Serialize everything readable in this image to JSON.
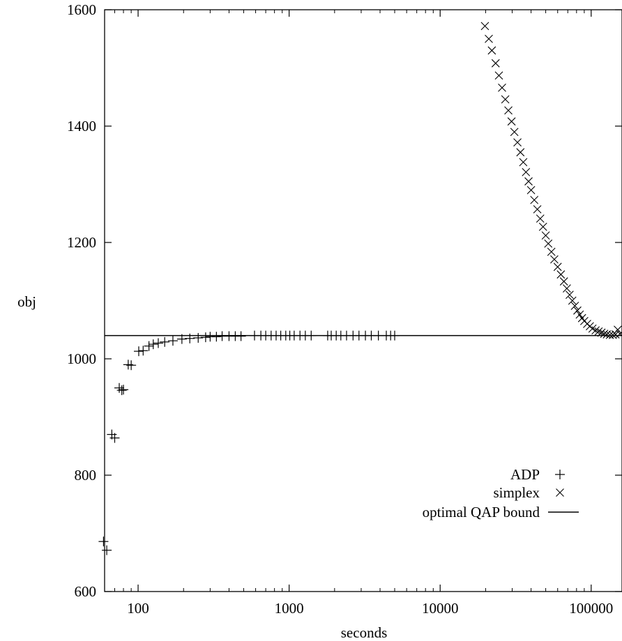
{
  "chart_data": {
    "type": "scatter",
    "title": "",
    "xlabel": "seconds",
    "ylabel": "obj",
    "x_scale": "log",
    "xlim": [
      60,
      160000
    ],
    "ylim": [
      600,
      1600
    ],
    "x_ticks": [
      100,
      1000,
      10000,
      100000
    ],
    "x_tick_labels": [
      "100",
      "1000",
      "10000",
      "100000"
    ],
    "y_ticks": [
      600,
      800,
      1000,
      1200,
      1400,
      1600
    ],
    "y_tick_labels": [
      "600",
      "800",
      "1000",
      "1200",
      "1400",
      "1600"
    ],
    "grid": false,
    "legend_position": "bottom-right",
    "series": [
      {
        "name": "ADP",
        "marker": "plus",
        "color": "#000000",
        "x": [
          59,
          62,
          67,
          70,
          75,
          78,
          80,
          86,
          90,
          101,
          108,
          118,
          126,
          136,
          150,
          170,
          195,
          220,
          250,
          280,
          300,
          330,
          360,
          400,
          440,
          480,
          590,
          650,
          700,
          760,
          820,
          880,
          950,
          1010,
          1080,
          1180,
          1280,
          1400,
          1800,
          1900,
          2050,
          2200,
          2400,
          2650,
          2900,
          3200,
          3500,
          3900,
          4400,
          4700,
          5000
        ],
        "y": [
          686,
          671,
          870,
          864,
          950,
          946,
          947,
          990,
          989,
          1013,
          1014,
          1022,
          1025,
          1027,
          1029,
          1031,
          1034,
          1035,
          1036,
          1037,
          1038,
          1038,
          1039,
          1039,
          1039,
          1039,
          1040,
          1040,
          1040,
          1040,
          1040,
          1040,
          1040,
          1040,
          1040,
          1040,
          1040,
          1040,
          1040,
          1040,
          1040,
          1040,
          1040,
          1040,
          1040,
          1040,
          1040,
          1040,
          1040,
          1040,
          1040
        ]
      },
      {
        "name": "simplex",
        "marker": "cross",
        "color": "#000000",
        "x": [
          19800,
          21000,
          22000,
          23300,
          24500,
          25700,
          27000,
          28300,
          29700,
          31000,
          32500,
          34000,
          35500,
          37000,
          38500,
          40000,
          42000,
          44000,
          46000,
          48000,
          50000,
          52000,
          54500,
          57000,
          60000,
          63000,
          66000,
          69000,
          72000,
          75000,
          78000,
          81000,
          84000,
          87000,
          90000,
          94000,
          98000,
          102000,
          107000,
          112000,
          117000,
          122000,
          127000,
          133000,
          139000,
          145000,
          150000,
          155000
        ],
        "y": [
          1572,
          1550,
          1530,
          1508,
          1487,
          1466,
          1446,
          1427,
          1408,
          1390,
          1372,
          1355,
          1338,
          1321,
          1305,
          1290,
          1273,
          1257,
          1241,
          1227,
          1212,
          1198,
          1184,
          1171,
          1158,
          1145,
          1133,
          1121,
          1110,
          1100,
          1091,
          1083,
          1076,
          1070,
          1065,
          1060,
          1056,
          1052,
          1049,
          1047,
          1045,
          1043,
          1042,
          1041,
          1041,
          1042,
          1050,
          1043
        ]
      },
      {
        "name": "optimal QAP bound",
        "type": "line",
        "color": "#000000",
        "value": 1040
      }
    ]
  }
}
